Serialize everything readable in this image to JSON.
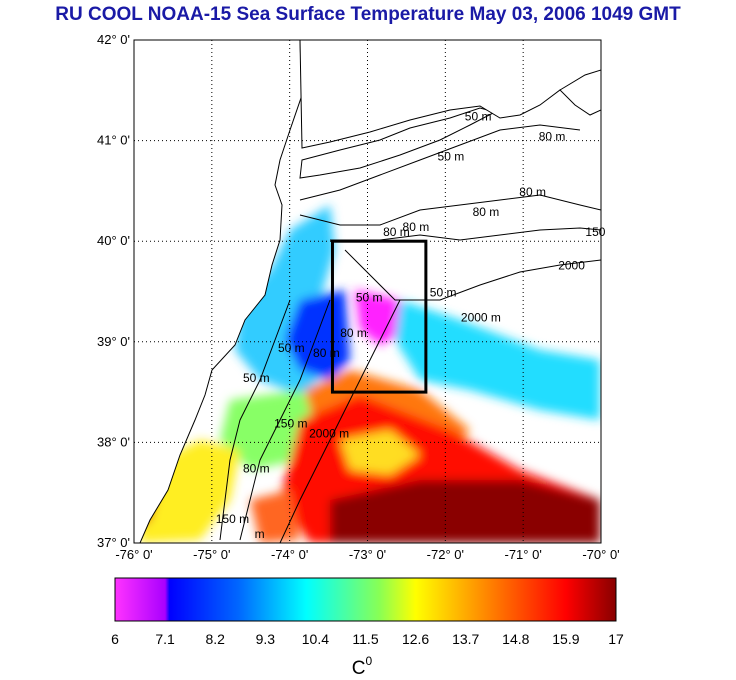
{
  "title": "RU COOL  NOAA-15 Sea Surface Temperature May 03, 2006 1049 GMT",
  "map": {
    "lon_range": [
      -76,
      -70
    ],
    "lat_range": [
      37,
      42
    ],
    "lon_labels": [
      "-76° 0'",
      "-75° 0'",
      "-74° 0'",
      "-73° 0'",
      "-72° 0'",
      "-71° 0'",
      "-70° 0'"
    ],
    "lat_labels": [
      "42° 0'",
      "41° 0'",
      "40° 0'",
      "39° 0'",
      "38° 0'",
      "37° 0'"
    ],
    "study_box": {
      "lon": [
        -73.45,
        -72.25
      ],
      "lat": [
        38.5,
        40.0
      ]
    },
    "contour_labels": [
      {
        "text": "50 m",
        "lon": -71.75,
        "lat": 41.2
      },
      {
        "text": "50 m",
        "lon": -72.1,
        "lat": 40.8
      },
      {
        "text": "80 m",
        "lon": -70.8,
        "lat": 41.0
      },
      {
        "text": "80 m",
        "lon": -71.05,
        "lat": 40.45
      },
      {
        "text": "80 m",
        "lon": -72.8,
        "lat": 40.05
      },
      {
        "text": "80 m",
        "lon": -72.55,
        "lat": 40.1
      },
      {
        "text": "80 m",
        "lon": -71.65,
        "lat": 40.25
      },
      {
        "text": "150",
        "lon": -70.2,
        "lat": 40.05
      },
      {
        "text": "2000",
        "lon": -70.55,
        "lat": 39.72
      },
      {
        "text": "2000 m",
        "lon": -71.8,
        "lat": 39.2
      },
      {
        "text": "50 m",
        "lon": -73.15,
        "lat": 39.4
      },
      {
        "text": "50 m",
        "lon": -72.2,
        "lat": 39.45
      },
      {
        "text": "80 m",
        "lon": -73.35,
        "lat": 39.05
      },
      {
        "text": "50 m",
        "lon": -74.6,
        "lat": 38.6
      },
      {
        "text": "50 m",
        "lon": -74.15,
        "lat": 38.9
      },
      {
        "text": "80 m",
        "lon": -73.7,
        "lat": 38.85
      },
      {
        "text": "150 m",
        "lon": -74.2,
        "lat": 38.15
      },
      {
        "text": "2000 m",
        "lon": -73.75,
        "lat": 38.05
      },
      {
        "text": "80 m",
        "lon": -74.6,
        "lat": 37.7
      },
      {
        "text": "150 m",
        "lon": -74.95,
        "lat": 37.2
      },
      {
        "text": "m",
        "lon": -74.45,
        "lat": 37.05
      }
    ]
  },
  "colorbar": {
    "min": 6,
    "max": 17,
    "tick_labels": [
      "6",
      "7.1",
      "8.2",
      "9.3",
      "10.4",
      "11.5",
      "12.6",
      "13.7",
      "14.8",
      "15.9",
      "17"
    ],
    "unit": "C",
    "unit_superscript": "0",
    "stops": [
      {
        "value": 6,
        "color": "#ff33ff"
      },
      {
        "value": 7.1,
        "color": "#aa00ff"
      },
      {
        "value": 7.2,
        "color": "#0000ff"
      },
      {
        "value": 8.7,
        "color": "#0066ff"
      },
      {
        "value": 10.2,
        "color": "#00ffff"
      },
      {
        "value": 11.8,
        "color": "#88ff55"
      },
      {
        "value": 12.6,
        "color": "#ffff00"
      },
      {
        "value": 13.7,
        "color": "#ffaa00"
      },
      {
        "value": 14.8,
        "color": "#ff5500"
      },
      {
        "value": 15.9,
        "color": "#ff0000"
      },
      {
        "value": 17,
        "color": "#880000"
      }
    ]
  }
}
